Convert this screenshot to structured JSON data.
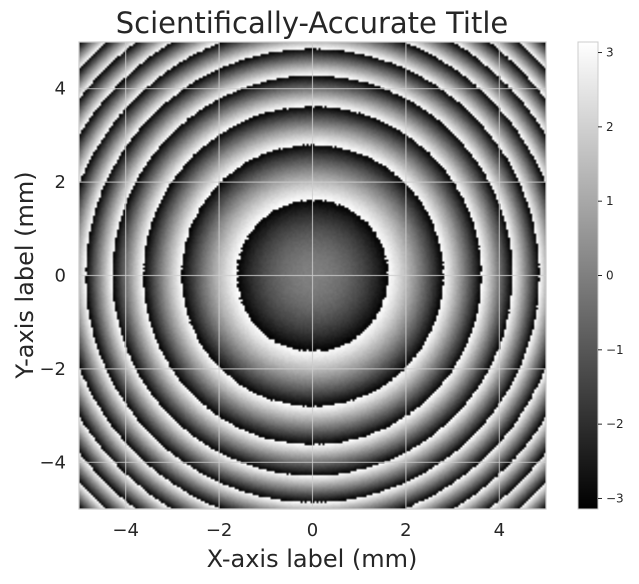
{
  "chart_data": {
    "type": "heatmap",
    "title": "Scientifically-Accurate Title",
    "xlabel": "X-axis label (mm)",
    "ylabel": "Y-axis label (mm)",
    "xlim": [
      -5,
      5
    ],
    "ylim": [
      -5,
      5
    ],
    "xticks": [
      -4,
      -2,
      0,
      2,
      4
    ],
    "yticks": [
      -4,
      -2,
      0,
      2,
      4
    ],
    "xtick_labels": [
      "−4",
      "−2",
      "0",
      "2",
      "4"
    ],
    "ytick_labels": [
      "−4",
      "−2",
      "0",
      "2",
      "4"
    ],
    "grid": true,
    "colormap": "gray",
    "colorbar": {
      "range": [
        -3.14159,
        3.14159
      ],
      "ticks": [
        -3,
        -2,
        -1,
        0,
        1,
        2,
        3
      ],
      "tick_labels": [
        "−3",
        "−2",
        "−1",
        "0",
        "1",
        "2",
        "3"
      ]
    },
    "function": "phase wrapped to [-pi, pi] of concentric rings; central disk radius ~1.6 mm; fringe period decreasing outward (quadratic phase)",
    "phase_coefficient": 1.2
  }
}
